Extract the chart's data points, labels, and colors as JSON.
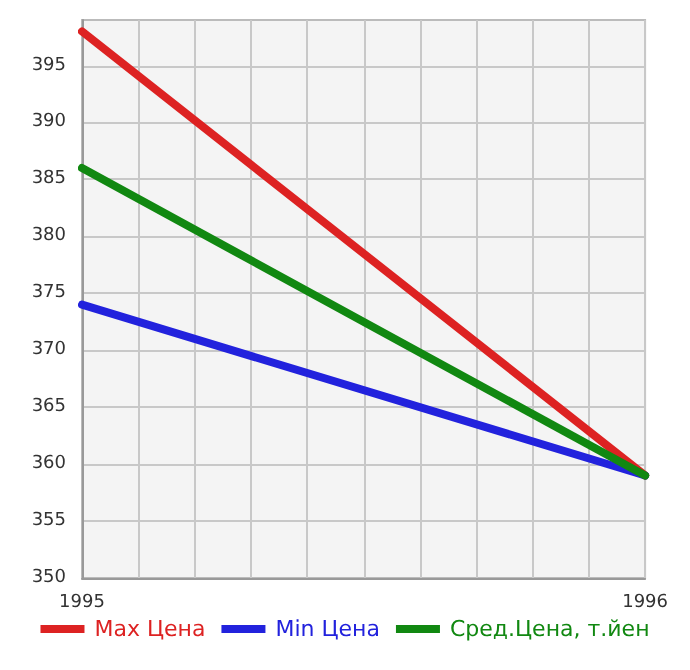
{
  "chart_data": {
    "type": "line",
    "x": [
      1995,
      1996
    ],
    "series": [
      {
        "name": "Max Цена",
        "color": "#dd2222",
        "values": [
          398,
          359
        ]
      },
      {
        "name": "Min Цена",
        "color": "#2222dd",
        "values": [
          374,
          359
        ]
      },
      {
        "name": "Сред.Цена, т.йен",
        "color": "#118811",
        "values": [
          386,
          359
        ]
      }
    ],
    "xlim": [
      1995,
      1996
    ],
    "xticks": [
      1995,
      {
        "value": 1995.1,
        "label": null
      },
      {
        "value": 1995.2,
        "label": null
      },
      {
        "value": 1995.3,
        "label": null
      },
      {
        "value": 1995.4,
        "label": null
      },
      {
        "value": 1995.5,
        "label": null
      },
      {
        "value": 1995.6,
        "label": null
      },
      {
        "value": 1995.7,
        "label": null
      },
      {
        "value": 1995.8,
        "label": null
      },
      {
        "value": 1995.9,
        "label": null
      },
      1996
    ],
    "ylim": [
      350,
      399
    ],
    "yticks": [
      350,
      355,
      360,
      365,
      370,
      375,
      380,
      385,
      390,
      395
    ],
    "grid": true,
    "legend": "bottom",
    "marker": "none",
    "line_style": "solid"
  }
}
